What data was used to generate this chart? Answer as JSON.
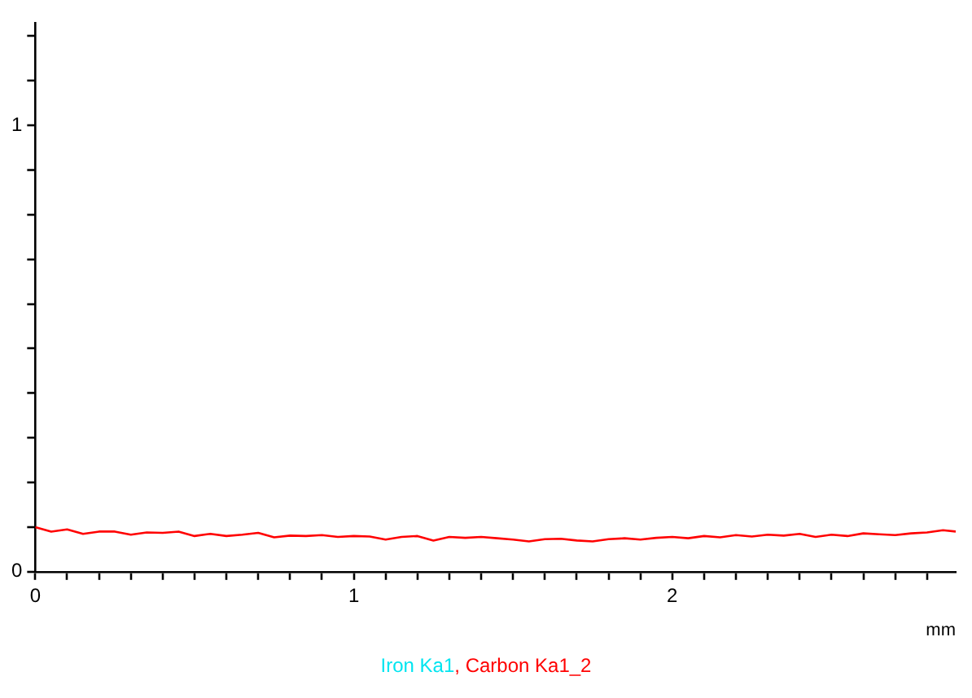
{
  "chart_data": {
    "type": "line",
    "xlabel": "mm",
    "x": [
      0,
      0.05,
      0.1,
      0.15,
      0.2,
      0.25,
      0.3,
      0.35,
      0.4,
      0.45,
      0.5,
      0.55,
      0.6,
      0.65,
      0.7,
      0.75,
      0.8,
      0.85,
      0.9,
      0.95,
      1.0,
      1.05,
      1.1,
      1.15,
      1.2,
      1.25,
      1.3,
      1.35,
      1.4,
      1.45,
      1.5,
      1.55,
      1.6,
      1.65,
      1.7,
      1.75,
      1.8,
      1.85,
      1.9,
      1.95,
      2.0,
      2.05,
      2.1,
      2.15,
      2.2,
      2.25,
      2.3,
      2.35,
      2.4,
      2.45,
      2.5,
      2.55,
      2.6,
      2.65,
      2.7,
      2.75,
      2.8,
      2.85,
      2.89
    ],
    "series": [
      {
        "name": "Iron Ka1",
        "color": "#00e5f0",
        "values": [
          null,
          null,
          null,
          null,
          null,
          null,
          null,
          null,
          null,
          null,
          null,
          null,
          null,
          null,
          null,
          null,
          null,
          null,
          null,
          null,
          null,
          null,
          null,
          null,
          null,
          null,
          null,
          null,
          null,
          null,
          null,
          null,
          null,
          null,
          null,
          null,
          null,
          null,
          null,
          null,
          null,
          null,
          null,
          null,
          null,
          null,
          null,
          null,
          null,
          null,
          null,
          null,
          null,
          null,
          null,
          null,
          null,
          null,
          null
        ]
      },
      {
        "name": "Carbon Ka1_2",
        "color": "#ff0000",
        "values": [
          0.1,
          0.09,
          0.095,
          0.085,
          0.09,
          0.09,
          0.083,
          0.088,
          0.087,
          0.09,
          0.08,
          0.085,
          0.08,
          0.083,
          0.087,
          0.077,
          0.081,
          0.08,
          0.082,
          0.078,
          0.08,
          0.079,
          0.072,
          0.078,
          0.08,
          0.07,
          0.078,
          0.076,
          0.078,
          0.075,
          0.072,
          0.068,
          0.073,
          0.074,
          0.07,
          0.068,
          0.073,
          0.075,
          0.072,
          0.076,
          0.078,
          0.075,
          0.08,
          0.077,
          0.082,
          0.079,
          0.083,
          0.081,
          0.085,
          0.078,
          0.083,
          0.08,
          0.086,
          0.084,
          0.082,
          0.086,
          0.088,
          0.093,
          0.09
        ]
      }
    ],
    "xlim": [
      0,
      2.89
    ],
    "ylim": [
      0,
      1.23
    ],
    "xticks": [
      0,
      {
        "value": 0.1,
        "label": null
      },
      {
        "value": 0.2,
        "label": null
      },
      {
        "value": 0.3,
        "label": null
      },
      {
        "value": 0.4,
        "label": null
      },
      {
        "value": 0.5,
        "label": null
      },
      {
        "value": 0.6,
        "label": null
      },
      {
        "value": 0.7,
        "label": null
      },
      {
        "value": 0.8,
        "label": null
      },
      {
        "value": 0.9,
        "label": null
      },
      1,
      {
        "value": 1.1,
        "label": null
      },
      {
        "value": 1.2,
        "label": null
      },
      {
        "value": 1.3,
        "label": null
      },
      {
        "value": 1.4,
        "label": null
      },
      {
        "value": 1.5,
        "label": null
      },
      {
        "value": 1.6,
        "label": null
      },
      {
        "value": 1.7,
        "label": null
      },
      {
        "value": 1.8,
        "label": null
      },
      {
        "value": 1.9,
        "label": null
      },
      2,
      {
        "value": 2.1,
        "label": null
      },
      {
        "value": 2.2,
        "label": null
      },
      {
        "value": 2.3,
        "label": null
      },
      {
        "value": 2.4,
        "label": null
      },
      {
        "value": 2.5,
        "label": null
      },
      {
        "value": 2.6,
        "label": null
      },
      {
        "value": 2.7,
        "label": null
      },
      {
        "value": 2.8,
        "label": null
      }
    ],
    "yticks": [
      0,
      {
        "value": 0.1,
        "label": null
      },
      {
        "value": 0.2,
        "label": null
      },
      {
        "value": 0.3,
        "label": null
      },
      {
        "value": 0.4,
        "label": null
      },
      {
        "value": 0.5,
        "label": null
      },
      {
        "value": 0.6,
        "label": null
      },
      {
        "value": 0.7,
        "label": null
      },
      {
        "value": 0.8,
        "label": null
      },
      {
        "value": 0.9,
        "label": null
      },
      1,
      {
        "value": 1.1,
        "label": null
      },
      {
        "value": 1.2,
        "label": null
      }
    ],
    "annotations": [
      ","
    ],
    "grid": false,
    "legend": "bottom",
    "marker": "none",
    "line_style": "solid"
  }
}
